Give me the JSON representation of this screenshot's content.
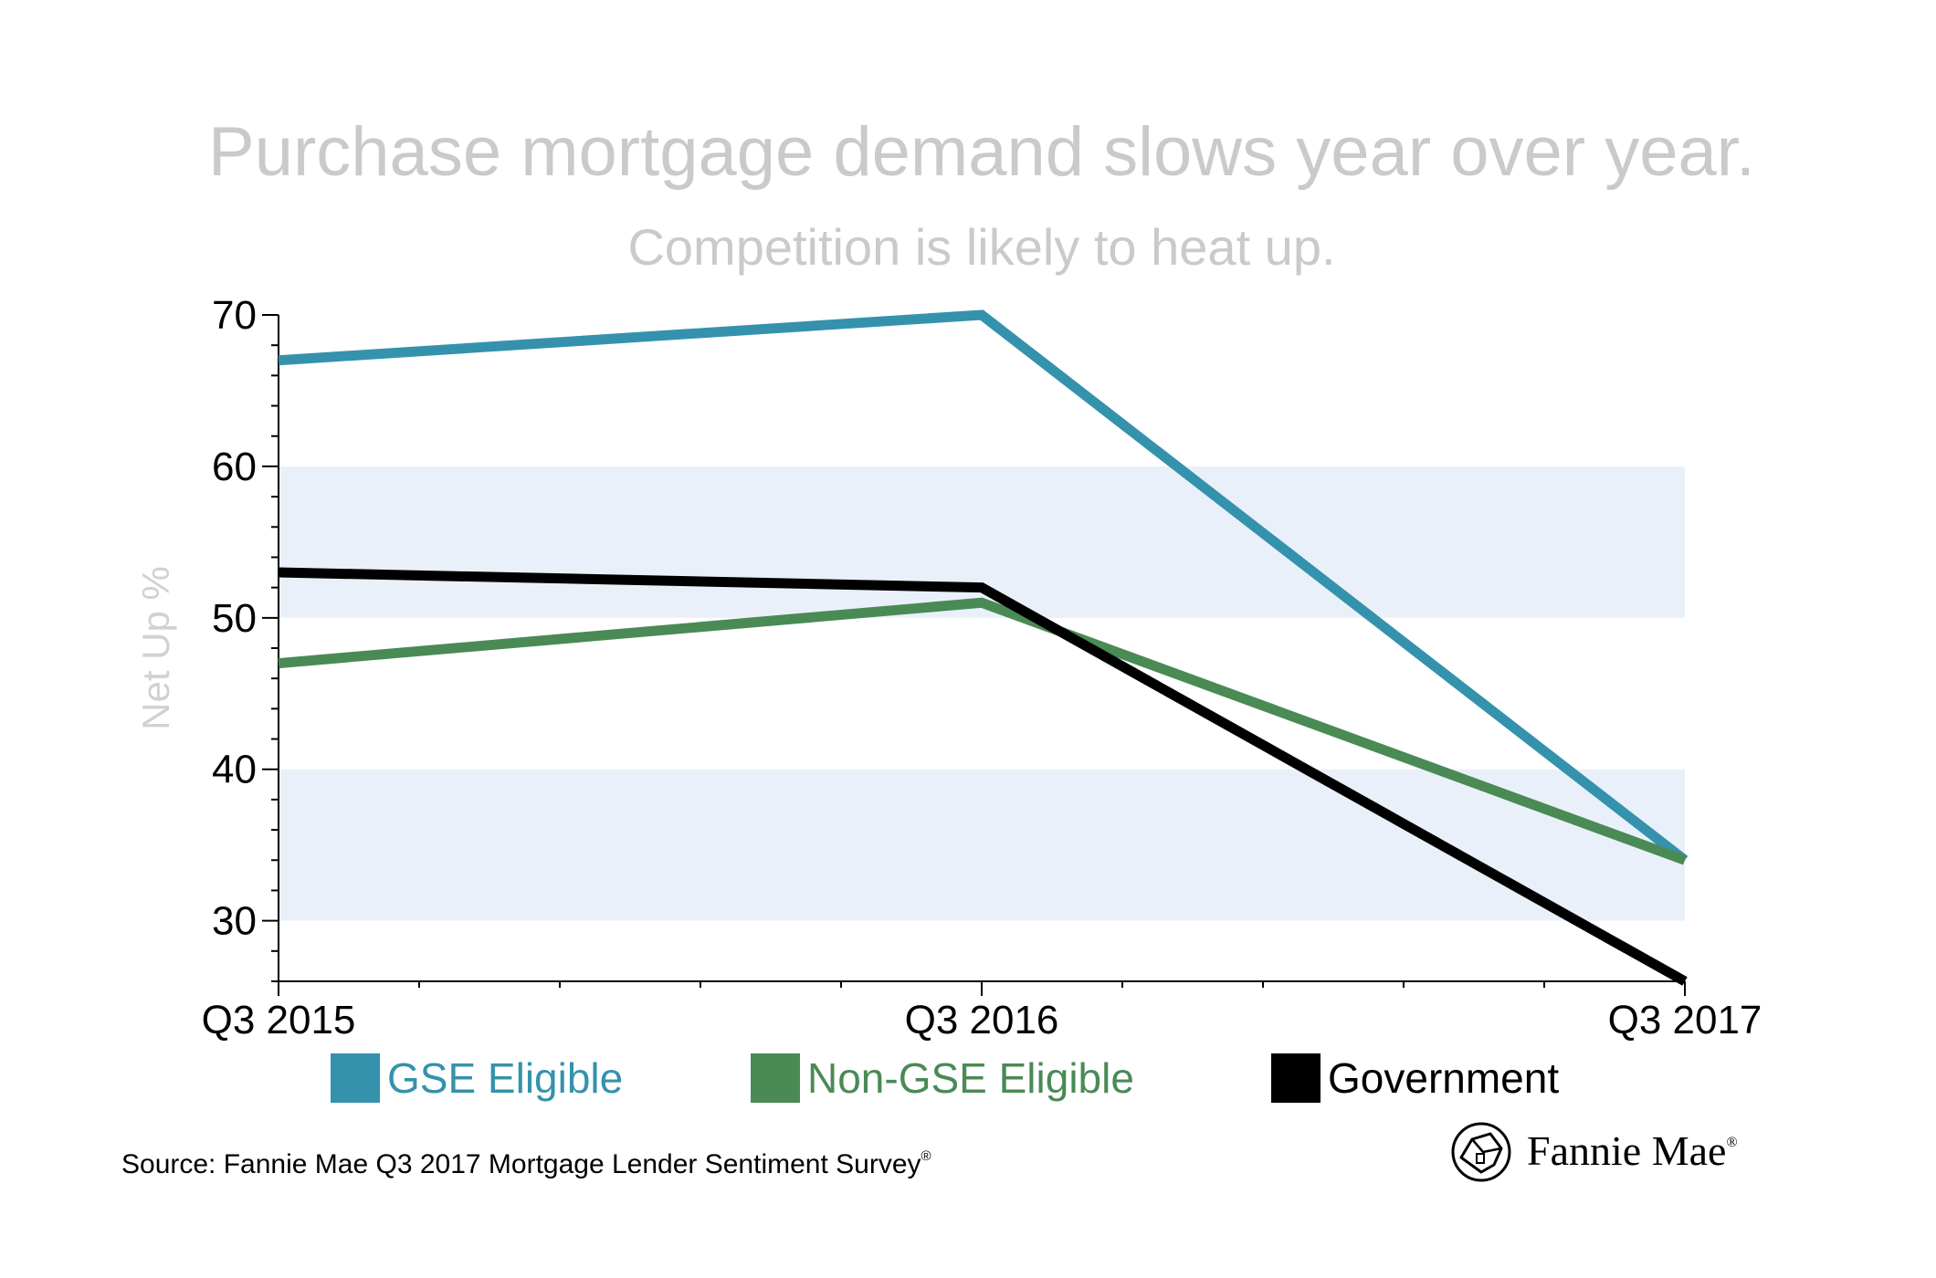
{
  "chart_data": {
    "type": "line",
    "title": "Purchase mortgage demand slows year over year.",
    "subtitle": "Competition is likely to heat up.",
    "ylabel": "Net Up %",
    "xlabel": "",
    "categories": [
      "Q3 2015",
      "Q3 2016",
      "Q3 2017"
    ],
    "ylim": [
      26,
      70
    ],
    "yticks": [
      30,
      40,
      50,
      60,
      70
    ],
    "bands": [
      [
        30,
        40
      ],
      [
        50,
        60
      ]
    ],
    "series": [
      {
        "name": "GSE Eligible",
        "values": [
          67,
          70,
          34
        ],
        "color": "#3592ad"
      },
      {
        "name": "Non-GSE Eligible",
        "values": [
          47,
          51,
          34
        ],
        "color": "#4a8a55"
      },
      {
        "name": "Government",
        "values": [
          53,
          52,
          26
        ],
        "color": "#000000"
      }
    ],
    "legend_position": "bottom",
    "grid": false
  },
  "colors": {
    "title": "#c8cacc",
    "ylabel": "#cfd2d4",
    "band": "#eaf0f9",
    "axis": "#000000"
  },
  "footer": {
    "source": "Source: Fannie Mae Q3 2017 Mortgage Lender Sentiment Survey",
    "source_mark": "®",
    "brand": "Fannie Mae",
    "brand_mark": "®",
    "logo_icon": "fannie-mae-house-logo"
  }
}
